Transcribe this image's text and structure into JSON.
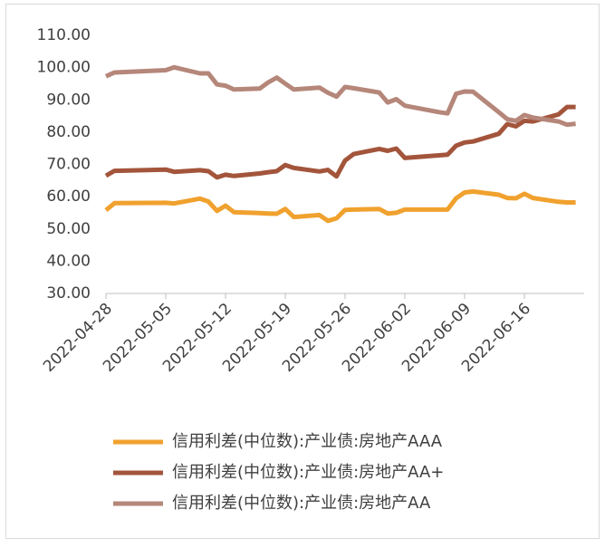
{
  "chart_data": {
    "type": "line",
    "x": [
      "2022-04-28",
      "2022-04-29",
      "2022-05-05",
      "2022-05-06",
      "2022-05-09",
      "2022-05-10",
      "2022-05-11",
      "2022-05-12",
      "2022-05-13",
      "2022-05-16",
      "2022-05-17",
      "2022-05-18",
      "2022-05-19",
      "2022-05-20",
      "2022-05-23",
      "2022-05-24",
      "2022-05-25",
      "2022-05-26",
      "2022-05-27",
      "2022-05-30",
      "2022-05-31",
      "2022-06-01",
      "2022-06-02",
      "2022-06-06",
      "2022-06-07",
      "2022-06-08",
      "2022-06-09",
      "2022-06-10",
      "2022-06-13",
      "2022-06-14",
      "2022-06-15",
      "2022-06-16",
      "2022-06-17",
      "2022-06-20",
      "2022-06-21",
      "2022-06-22"
    ],
    "series": [
      {
        "name": "信用利差(中位数):产业债:房地产AAA",
        "color": "#f0a12e",
        "values": [
          55.8,
          58,
          58.1,
          57.9,
          59.4,
          58.5,
          55.6,
          57.2,
          55.2,
          54.9,
          54.8,
          54.7,
          56.2,
          53.7,
          54.3,
          52.5,
          53.3,
          55.9,
          56,
          56.2,
          54.8,
          55,
          56,
          56,
          56,
          59.5,
          61.3,
          61.6,
          60.6,
          59.6,
          59.5,
          60.9,
          59.6,
          58.4,
          58.2,
          58.2
        ]
      },
      {
        "name": "信用利差(中位数):产业债:房地产AA+",
        "color": "#a3553b",
        "values": [
          66.5,
          68,
          68.4,
          67.7,
          68.2,
          67.9,
          66,
          66.8,
          66.4,
          67.2,
          67.6,
          67.9,
          69.8,
          68.9,
          67.8,
          68.3,
          66.3,
          71.2,
          73.2,
          74.8,
          74.2,
          74.9,
          72,
          72.8,
          73,
          75.8,
          76.8,
          77.1,
          79.5,
          82.5,
          81.8,
          83.5,
          83.3,
          85.5,
          87.8,
          87.8
        ]
      },
      {
        "name": "信用利差(中位数):产业债:房地产AA",
        "color": "#b5877a",
        "values": [
          97.3,
          98.5,
          99.2,
          100.1,
          98.2,
          98.2,
          94.8,
          94.4,
          93.2,
          93.5,
          95.4,
          96.9,
          95,
          93.2,
          93.8,
          92.2,
          91,
          94,
          93.6,
          92.3,
          89.2,
          90.2,
          88.2,
          86.2,
          85.8,
          91.9,
          92.6,
          92.5,
          86.2,
          84,
          83.5,
          85.3,
          84.5,
          83.3,
          82.3,
          82.6
        ]
      }
    ],
    "xlim": [
      "2022-04-28",
      "2022-06-23"
    ],
    "xticks": [
      "2022-04-28",
      "2022-05-05",
      "2022-05-12",
      "2022-05-19",
      "2022-05-26",
      "2022-06-02",
      "2022-06-09",
      "2022-06-16"
    ],
    "ylim": [
      30,
      110
    ],
    "yticks": [
      {
        "value": 30,
        "label": "30.00"
      },
      {
        "value": 40,
        "label": "40.00"
      },
      {
        "value": 50,
        "label": "50.00"
      },
      {
        "value": 60,
        "label": "60.00"
      },
      {
        "value": 70,
        "label": "70.00"
      },
      {
        "value": 80,
        "label": "80.00"
      },
      {
        "value": 90,
        "label": "90.00"
      },
      {
        "value": 100,
        "label": "100.00"
      },
      {
        "value": 110,
        "label": "110.00"
      }
    ],
    "grid": false
  }
}
